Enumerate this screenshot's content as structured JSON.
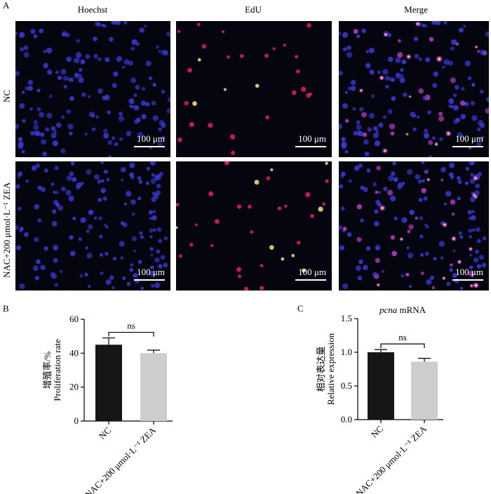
{
  "figure": {
    "panel_a_letter": "A",
    "panel_b_letter": "B",
    "panel_c_letter": "C",
    "columns": [
      "Hoechst",
      "EdU",
      "Merge"
    ],
    "rows": [
      "NC",
      "NAC+200 μmol·L⁻¹ ZEA"
    ],
    "scale_bar_label": "100 μm",
    "colors": {
      "hoechst": "#3b3bdc",
      "edu": "#e0205a",
      "edu_bright": "#ffe08a",
      "merge_magenta": "#c040c8",
      "bar_nc": "#161616",
      "bar_treat": "#cdcdd0"
    }
  },
  "chart_data": [
    {
      "type": "bar",
      "panel": "B",
      "title": "",
      "ylabel_cn": "增殖率/%",
      "ylabel_en": "Proliferation rate",
      "categories": [
        "NC",
        "NAC+200 μmol·L⁻¹ ZEA"
      ],
      "values": [
        45,
        40
      ],
      "errors": [
        4,
        1.8
      ],
      "ylim": [
        0,
        60
      ],
      "yticks": [
        "0",
        "20",
        "40",
        "60"
      ],
      "significance": "ns"
    },
    {
      "type": "bar",
      "panel": "C",
      "title_italic": "pcna",
      "title_rest": " mRNA",
      "ylabel_cn": "相对表达量",
      "ylabel_en": "Relative expression",
      "categories": [
        "NC",
        "NAC+200 μmol·L⁻¹ ZEA"
      ],
      "values": [
        1.0,
        0.86
      ],
      "errors": [
        0.04,
        0.05
      ],
      "ylim": [
        0,
        1.5
      ],
      "yticks": [
        "0.0",
        "0.5",
        "1.0",
        "1.5"
      ],
      "significance": "ns"
    }
  ]
}
